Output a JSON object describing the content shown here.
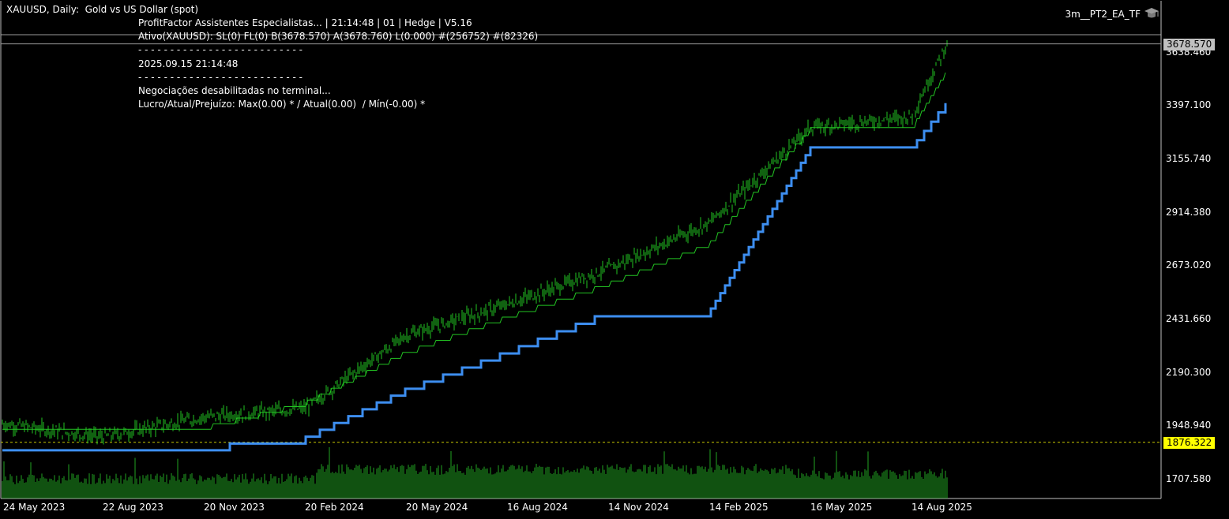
{
  "header": {
    "symbol_line": "XAUUSD, Daily:  Gold vs US Dollar (spot)"
  },
  "ea": {
    "name": "3m__PT2_EA_TF",
    "icon": "graduation-cap-icon"
  },
  "info_lines": [
    "ProfitFactor Assistentes Especialistas... | 21:14:48 | 01 | Hedge | V5.16",
    "Ativo(XAUUSD): SL(0) FL(0) B(3678.570) A(3678.760) L(0.000) #(256752) #(82326)",
    "- - - - - - - - - - - - - - - - - - - - - - - - - -",
    "2025.09.15 21:14:48",
    "- - - - - - - - - - - - - - - - - - - - - - - - - -",
    "Negociações desabilitadas no terminal...",
    "Lucro/Atual/Prejuízo: Max(0.00) * / Atual(0.00)  / Mín(-0.00) *"
  ],
  "price_tags": {
    "bid": "3678.570",
    "level": "1876.322"
  },
  "colors": {
    "background": "#000000",
    "candles": "#22c322",
    "trail_line": "#22c322",
    "stop_line": "#3d8ef0",
    "volume": "#22a322",
    "level_line": "#c8c800",
    "level_tag": "#ffff00",
    "bid_tag": "#c0c0c0"
  },
  "chart_data": {
    "type": "line",
    "ylim": [
      1622,
      3720
    ],
    "y_ticks": [
      "3638.460",
      "3397.100",
      "3155.740",
      "2914.380",
      "2673.020",
      "2431.660",
      "2190.300",
      "1948.940",
      "1707.580"
    ],
    "x_ticks": [
      "24 May 2023",
      "22 Aug 2023",
      "20 Nov 2023",
      "20 Feb 2024",
      "20 May 2024",
      "16 Aug 2024",
      "14 Nov 2024",
      "14 Feb 2025",
      "16 May 2025",
      "14 Aug 2025"
    ],
    "horizontal_level": 1876.322,
    "bid": 3678.57,
    "series": [
      {
        "role": "close",
        "x": [
          "24 May 2023",
          "22 Aug 2023",
          "20 Nov 2023",
          "20 Feb 2024",
          "20 May 2024",
          "16 Aug 2024",
          "14 Nov 2024",
          "14 Feb 2025",
          "16 May 2025",
          "14 Aug 2025",
          "end"
        ],
        "values": [
          1960,
          1900,
          1990,
          2030,
          2360,
          2500,
          2660,
          2870,
          3300,
          3350,
          3680
        ]
      },
      {
        "role": "trail",
        "x": [
          "24 May 2023",
          "20 Nov 2023",
          "20 Feb 2024",
          "20 May 2024",
          "16 Aug 2024",
          "14 Nov 2024",
          "14 Feb 2025",
          "16 May 2025",
          "14 Aug 2025",
          "end"
        ],
        "values": [
          1935,
          1950,
          2060,
          2290,
          2450,
          2600,
          2780,
          3300,
          3300,
          3560
        ]
      },
      {
        "role": "stop",
        "x": [
          "24 May 2023",
          "20 Nov 2023",
          "20 Feb 2024",
          "20 May 2024",
          "16 Aug 2024",
          "14 Nov 2024",
          "14 Feb 2025",
          "16 May 2025",
          "14 Aug 2025",
          "end"
        ],
        "values": [
          1840,
          1860,
          1900,
          2120,
          2290,
          2470,
          2470,
          3210,
          3210,
          3420
        ]
      }
    ]
  }
}
